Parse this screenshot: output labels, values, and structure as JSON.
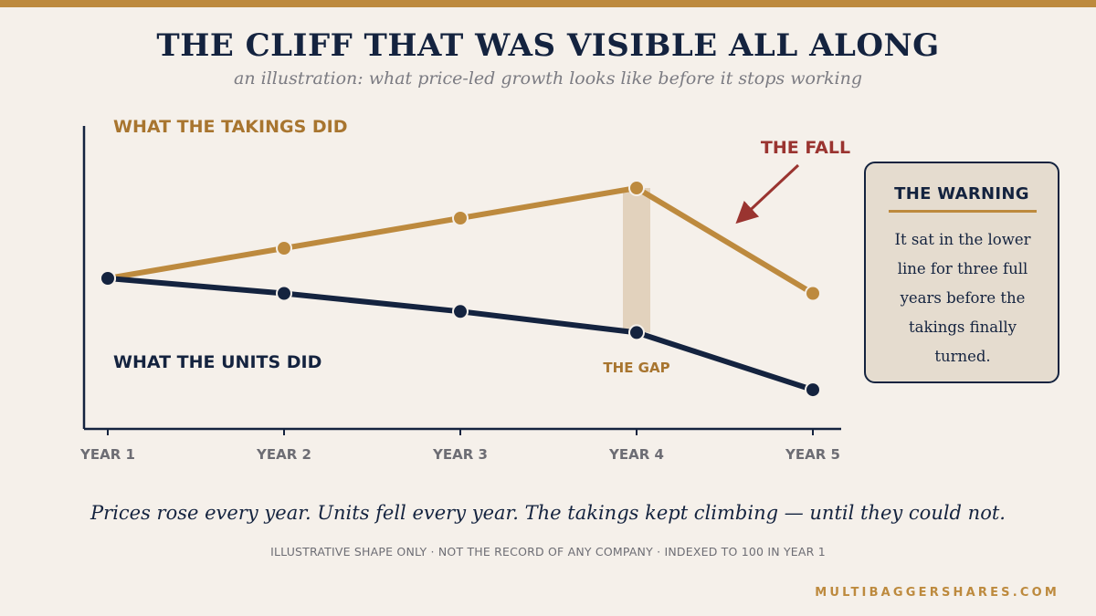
{
  "header": {
    "title": "THE CLIFF THAT WAS VISIBLE ALL ALONG",
    "subtitle": "an illustration: what price-led growth looks like before it stops working"
  },
  "chart_data": {
    "type": "line",
    "categories": [
      "YEAR 1",
      "YEAR 2",
      "YEAR 3",
      "YEAR 4",
      "YEAR 5"
    ],
    "series": [
      {
        "name": "WHAT THE TAKINGS DID",
        "values": [
          100,
          110,
          120,
          130,
          95
        ],
        "color": "#bd8a3e"
      },
      {
        "name": "WHAT THE UNITS DID",
        "values": [
          100,
          95,
          89,
          82,
          63
        ],
        "color": "#14233f"
      }
    ],
    "ylim": [
      50,
      150
    ],
    "grid": false,
    "annotations": {
      "fall_label": "THE FALL",
      "fall_color": "#9a3430",
      "gap_label": "THE GAP",
      "gap_category": "YEAR 4"
    }
  },
  "warning": {
    "title": "THE WARNING",
    "body": "It sat in the lower line for three full years before the takings finally turned."
  },
  "footer": {
    "caption": "Prices rose every year. Units fell every year. The takings kept climbing — until they could not.",
    "note": "ILLUSTRATIVE SHAPE ONLY · NOT THE RECORD OF ANY COMPANY · INDEXED TO 100 IN YEAR 1",
    "site": "MULTIBAGGERSHARES.COM"
  }
}
